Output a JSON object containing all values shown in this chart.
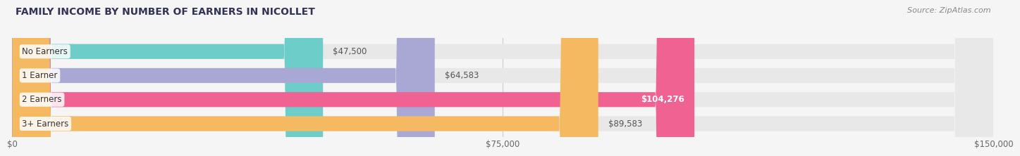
{
  "title": "FAMILY INCOME BY NUMBER OF EARNERS IN NICOLLET",
  "source": "Source: ZipAtlas.com",
  "categories": [
    "No Earners",
    "1 Earner",
    "2 Earners",
    "3+ Earners"
  ],
  "values": [
    47500,
    64583,
    104276,
    89583
  ],
  "bar_colors": [
    "#6dcdc8",
    "#a9a8d4",
    "#f06292",
    "#f5b962"
  ],
  "label_colors": [
    "#333333",
    "#333333",
    "#ffffff",
    "#333333"
  ],
  "bg_color": "#f5f5f5",
  "bar_bg_color": "#e8e8e8",
  "xmax": 150000,
  "xticks": [
    0,
    75000,
    150000
  ],
  "xticklabels": [
    "$0",
    "$75,000",
    "$150,000"
  ],
  "value_labels": [
    "$47,500",
    "$64,583",
    "$104,276",
    "$89,583"
  ],
  "title_fontsize": 10,
  "source_fontsize": 8,
  "label_fontsize": 8.5,
  "tick_fontsize": 8.5
}
